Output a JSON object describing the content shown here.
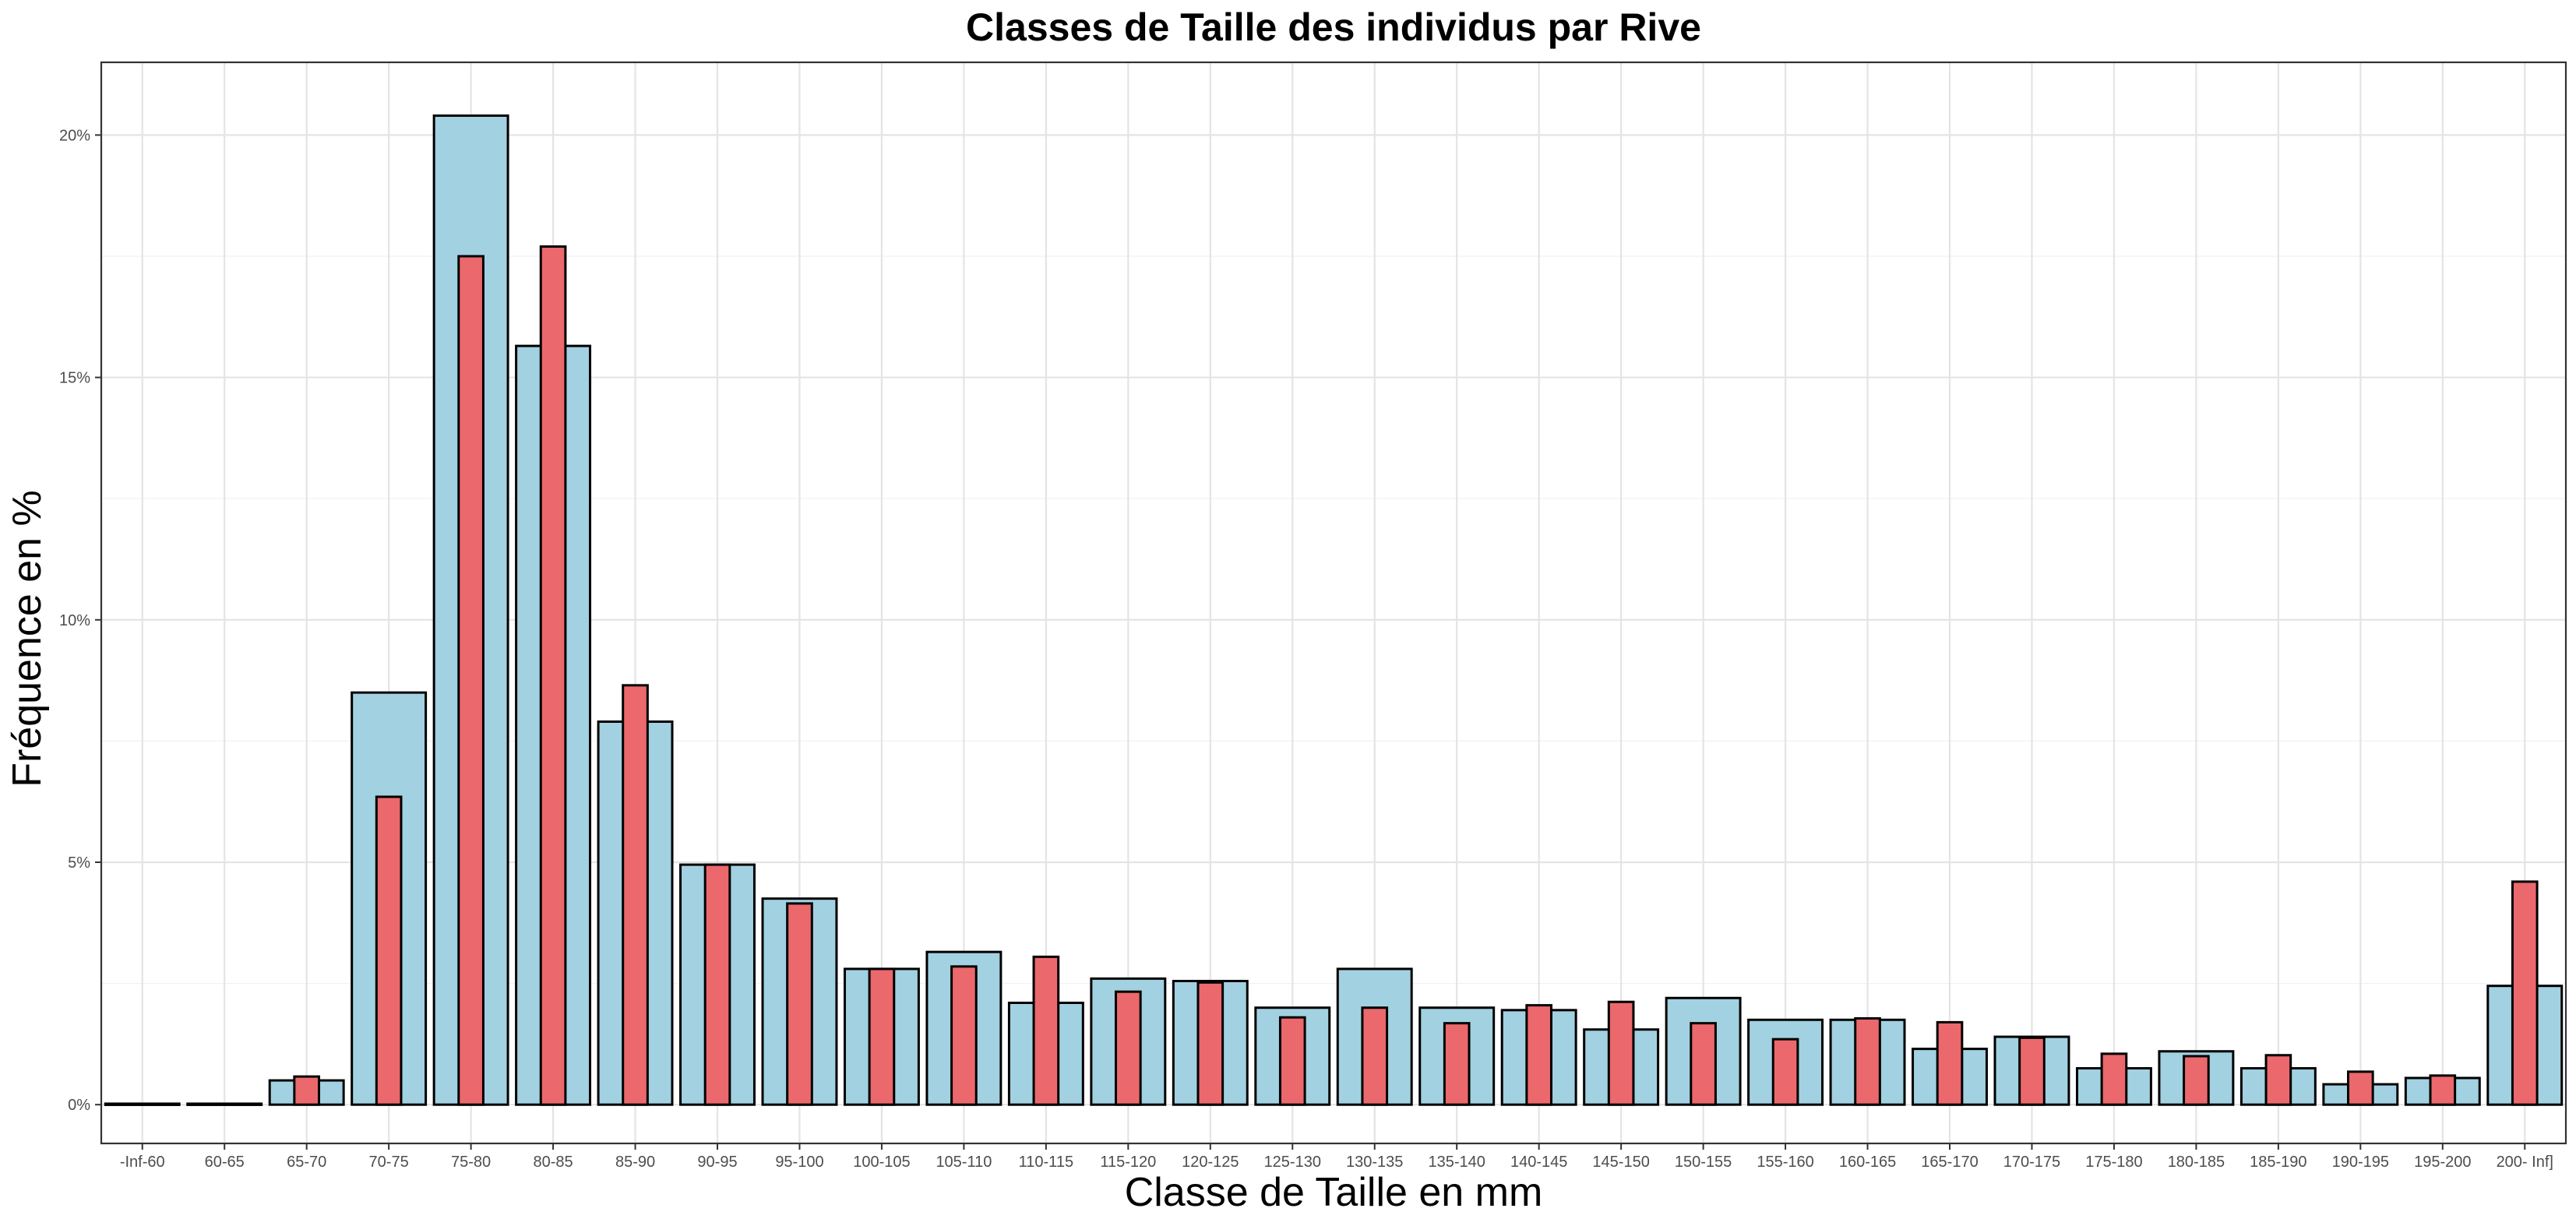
{
  "chart_data": {
    "type": "bar",
    "title": "Classes de Taille des individus par Rive",
    "xlabel": "Classe de Taille en mm",
    "ylabel": "Fréquence en %",
    "ylim": [
      -0.8,
      21.5
    ],
    "y_ticks": [
      0,
      5,
      10,
      15,
      20
    ],
    "y_tick_labels": [
      "0%",
      "5%",
      "10%",
      "15%",
      "20%"
    ],
    "grid": true,
    "colors": {
      "wide": "#a2d1e1",
      "narrow": "#eb686c",
      "outline": "#000000"
    },
    "categories": [
      "-Inf-60",
      "60-65",
      "65-70",
      "70-75",
      "75-80",
      "80-85",
      "85-90",
      "90-95",
      "95-100",
      "100-105",
      "105-110",
      "110-115",
      "115-120",
      "120-125",
      "125-130",
      "130-135",
      "135-140",
      "140-145",
      "145-150",
      "150-155",
      "155-160",
      "160-165",
      "165-170",
      "170-175",
      "175-180",
      "180-185",
      "185-190",
      "190-195",
      "195-200",
      "200- Inf]"
    ],
    "series": [
      {
        "values": [
          0.02,
          0.02,
          0.5,
          8.5,
          20.4,
          15.65,
          7.9,
          4.95,
          4.25,
          2.8,
          3.15,
          2.1,
          2.6,
          2.55,
          2.0,
          2.8,
          2.0,
          1.95,
          1.55,
          2.2,
          1.75,
          1.75,
          1.15,
          1.4,
          0.75,
          1.1,
          0.75,
          0.42,
          0.55,
          2.45
        ]
      },
      {
        "values": [
          0,
          0,
          0.58,
          6.35,
          17.5,
          17.7,
          8.65,
          4.95,
          4.15,
          2.8,
          2.85,
          3.05,
          2.33,
          2.52,
          1.8,
          2.0,
          1.68,
          2.05,
          2.12,
          1.68,
          1.35,
          1.78,
          1.7,
          1.38,
          1.05,
          1.0,
          1.02,
          0.68,
          0.6,
          4.6
        ]
      }
    ]
  }
}
